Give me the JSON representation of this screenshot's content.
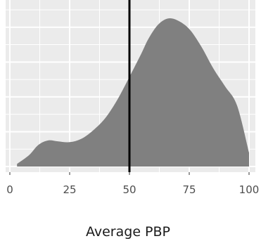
{
  "chart_data": {
    "type": "area",
    "subtype": "density",
    "title": "",
    "xlabel": "Average PBP",
    "ylabel": "",
    "xlim": [
      0,
      100
    ],
    "x_ticks": [
      0,
      25,
      50,
      75,
      100
    ],
    "x_tick_labels": [
      "0",
      "25",
      "50",
      "75",
      "100"
    ],
    "y_axis_shown": false,
    "grid": true,
    "background": "#ebebeb",
    "grid_color": "#ffffff",
    "fill_color": "#808080",
    "vline": {
      "x": 50,
      "color": "#000000"
    },
    "series": [
      {
        "x": [
          3,
          8,
          12,
          16,
          20,
          25,
          30,
          35,
          40,
          45,
          50,
          55,
          58,
          62,
          66,
          70,
          75,
          80,
          85,
          90,
          95,
          100
        ],
        "y": [
          0.03,
          0.13,
          0.25,
          0.3,
          0.29,
          0.28,
          0.32,
          0.42,
          0.56,
          0.77,
          1.03,
          1.3,
          1.47,
          1.63,
          1.7,
          1.68,
          1.58,
          1.38,
          1.13,
          0.92,
          0.7,
          0.16
        ]
      }
    ],
    "ylim": [
      0,
      1.8
    ]
  }
}
